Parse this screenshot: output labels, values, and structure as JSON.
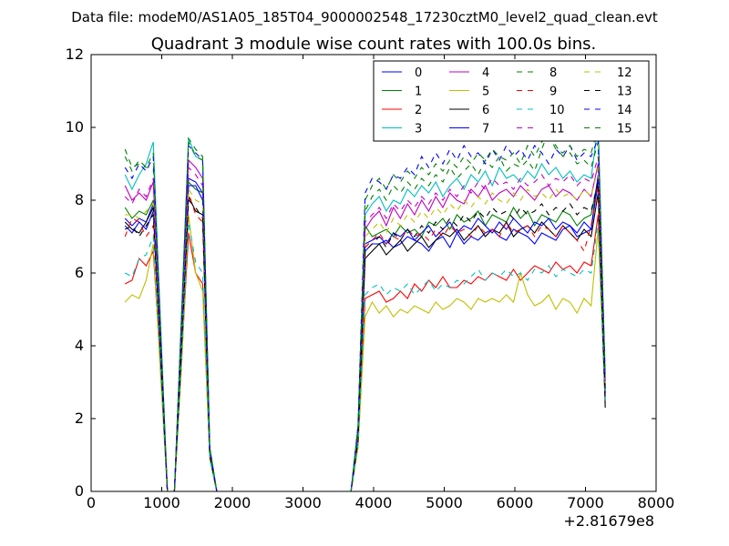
{
  "figure": {
    "suptitle": "Data file: modeM0/AS1A05_185T04_9000002548_17230cztM0_level2_quad_clean.evt",
    "title": "Quadrant 3 module wise count rates with 100.0s bins.",
    "offset_label": "+2.81679e8"
  },
  "chart_data": {
    "type": "line",
    "title": "Quadrant 3 module wise count rates with 100.0s bins.",
    "xlabel": "",
    "ylabel": "",
    "xlim": [
      0,
      8000
    ],
    "ylim": [
      0,
      12
    ],
    "x_offset": 281679000,
    "xticks": [
      0,
      1000,
      2000,
      3000,
      4000,
      5000,
      6000,
      7000,
      8000
    ],
    "yticks": [
      0,
      2,
      4,
      6,
      8,
      10,
      12
    ],
    "grid": false,
    "legend_position": "top-right",
    "legend_columns": 4,
    "x": [
      480,
      580,
      680,
      780,
      880,
      980,
      1080,
      1180,
      1280,
      1380,
      1480,
      1580,
      1680,
      1780,
      1880,
      1980,
      2080,
      2180,
      2280,
      2380,
      2480,
      2580,
      2680,
      2780,
      2880,
      2980,
      3080,
      3180,
      3280,
      3380,
      3480,
      3580,
      3680,
      3780,
      3880,
      3980,
      4080,
      4180,
      4280,
      4380,
      4480,
      4580,
      4680,
      4780,
      4880,
      4980,
      5080,
      5180,
      5280,
      5380,
      5480,
      5580,
      5680,
      5780,
      5880,
      5980,
      6080,
      6180,
      6280,
      6380,
      6480,
      6580,
      6680,
      6780,
      6880,
      6980,
      7080,
      7180,
      7280
    ],
    "series": [
      {
        "name": "0",
        "color": "#0000ff",
        "dash": "solid",
        "values": [
          7.5,
          7.3,
          7.5,
          7.4,
          7.9,
          4.0,
          0.0,
          0.0,
          4.0,
          8.6,
          8.5,
          8.2,
          1.0,
          0.0,
          0,
          0,
          0,
          0,
          0,
          0,
          0,
          0,
          0,
          0,
          0,
          0,
          0,
          0,
          0,
          0,
          0,
          0,
          0.0,
          1.5,
          6.6,
          6.8,
          6.8,
          6.9,
          6.7,
          6.8,
          7.0,
          6.9,
          6.8,
          6.6,
          6.9,
          7.0,
          6.7,
          7.1,
          6.8,
          7.0,
          6.9,
          7.1,
          7.2,
          7.0,
          6.9,
          7.2,
          7.1,
          7.0,
          6.8,
          7.1,
          7.0,
          6.9,
          7.2,
          7.3,
          7.0,
          7.1,
          7.2,
          8.5,
          2.6
        ]
      },
      {
        "name": "1",
        "color": "#008000",
        "dash": "solid",
        "values": [
          7.8,
          7.5,
          7.7,
          7.6,
          8.0,
          4.1,
          0.0,
          0.0,
          4.2,
          8.5,
          8.3,
          8.2,
          1.0,
          0.0,
          0,
          0,
          0,
          0,
          0,
          0,
          0,
          0,
          0,
          0,
          0,
          0,
          0,
          0,
          0,
          0,
          0,
          0,
          0.0,
          1.5,
          7.3,
          7.0,
          7.1,
          7.2,
          7.0,
          7.3,
          7.1,
          7.2,
          7.0,
          7.4,
          7.3,
          7.5,
          7.2,
          7.6,
          7.4,
          7.5,
          7.7,
          7.3,
          7.6,
          7.5,
          7.4,
          7.8,
          7.5,
          7.7,
          7.3,
          7.6,
          7.5,
          7.4,
          7.7,
          7.6,
          7.3,
          7.5,
          7.6,
          8.6,
          2.8
        ]
      },
      {
        "name": "2",
        "color": "#ff0000",
        "dash": "solid",
        "values": [
          5.7,
          5.8,
          6.4,
          6.2,
          6.6,
          3.5,
          0.0,
          0.0,
          3.6,
          7.1,
          6.0,
          5.7,
          0.9,
          0.0,
          0,
          0,
          0,
          0,
          0,
          0,
          0,
          0,
          0,
          0,
          0,
          0,
          0,
          0,
          0,
          0,
          0,
          0,
          0.0,
          1.3,
          5.3,
          5.4,
          5.5,
          5.2,
          5.3,
          5.5,
          5.3,
          5.7,
          5.5,
          5.8,
          5.6,
          5.9,
          5.6,
          5.6,
          5.8,
          5.7,
          5.9,
          5.8,
          6.0,
          5.9,
          5.8,
          6.1,
          5.8,
          6.0,
          6.2,
          6.1,
          6.0,
          6.3,
          6.1,
          6.2,
          6.0,
          6.3,
          6.2,
          7.6,
          2.5
        ]
      },
      {
        "name": "3",
        "color": "#00bfbf",
        "dash": "solid",
        "values": [
          8.7,
          8.3,
          8.7,
          9.0,
          9.6,
          4.8,
          0.0,
          0.0,
          4.9,
          9.7,
          9.2,
          9.1,
          1.2,
          0.0,
          0,
          0,
          0,
          0,
          0,
          0,
          0,
          0,
          0,
          0,
          0,
          0,
          0,
          0,
          0,
          0,
          0,
          0,
          0.0,
          1.8,
          7.6,
          7.9,
          8.1,
          7.7,
          8.0,
          7.9,
          8.3,
          8.1,
          8.4,
          8.2,
          8.5,
          8.1,
          8.4,
          8.6,
          8.3,
          8.7,
          8.5,
          8.8,
          8.4,
          8.9,
          8.6,
          8.7,
          8.5,
          8.8,
          8.6,
          9.0,
          8.7,
          8.9,
          8.6,
          8.8,
          8.5,
          8.7,
          8.6,
          10.1,
          3.0
        ]
      },
      {
        "name": "4",
        "color": "#bf00bf",
        "dash": "solid",
        "values": [
          8.4,
          8.0,
          8.2,
          8.0,
          8.5,
          4.3,
          0.0,
          0.0,
          4.5,
          9.1,
          8.9,
          8.6,
          1.1,
          0.0,
          0,
          0,
          0,
          0,
          0,
          0,
          0,
          0,
          0,
          0,
          0,
          0,
          0,
          0,
          0,
          0,
          0,
          0,
          0.0,
          1.6,
          7.2,
          7.5,
          7.7,
          7.3,
          7.8,
          7.5,
          7.9,
          7.6,
          8.0,
          7.7,
          8.1,
          7.8,
          8.2,
          8.0,
          7.9,
          8.3,
          8.1,
          8.4,
          8.0,
          8.2,
          8.3,
          8.1,
          8.4,
          8.2,
          8.0,
          8.3,
          8.4,
          8.1,
          8.3,
          8.2,
          8.0,
          8.3,
          8.1,
          9.0,
          2.9
        ]
      },
      {
        "name": "5",
        "color": "#bfbf00",
        "dash": "solid",
        "values": [
          5.2,
          5.4,
          5.3,
          5.8,
          6.8,
          3.3,
          0.0,
          0.0,
          3.4,
          7.6,
          6.0,
          5.5,
          0.9,
          0.0,
          0,
          0,
          0,
          0,
          0,
          0,
          0,
          0,
          0,
          0,
          0,
          0,
          0,
          0,
          0,
          0,
          0,
          0,
          0.0,
          1.2,
          4.8,
          5.2,
          4.9,
          5.1,
          4.8,
          5.0,
          4.9,
          5.1,
          5.0,
          4.9,
          5.2,
          5.0,
          5.1,
          5.3,
          5.2,
          5.0,
          5.3,
          5.2,
          5.3,
          5.2,
          5.4,
          5.2,
          6.0,
          5.4,
          5.1,
          5.2,
          5.4,
          5.0,
          5.3,
          5.2,
          4.9,
          5.3,
          5.1,
          7.2,
          2.4
        ]
      },
      {
        "name": "6",
        "color": "#000000",
        "dash": "solid",
        "values": [
          7.4,
          7.2,
          7.1,
          7.4,
          7.8,
          4.0,
          0.0,
          0.0,
          4.0,
          8.1,
          7.7,
          7.6,
          1.0,
          0.0,
          0,
          0,
          0,
          0,
          0,
          0,
          0,
          0,
          0,
          0,
          0,
          0,
          0,
          0,
          0,
          0,
          0,
          0,
          0.0,
          1.4,
          6.4,
          6.6,
          6.8,
          6.5,
          6.7,
          6.9,
          6.6,
          6.8,
          7.0,
          6.7,
          6.9,
          7.1,
          7.0,
          7.2,
          6.9,
          7.1,
          7.3,
          7.0,
          7.2,
          7.1,
          7.4,
          7.0,
          7.2,
          7.3,
          7.1,
          7.4,
          7.2,
          7.0,
          7.3,
          7.1,
          6.9,
          7.2,
          7.0,
          8.2,
          2.3
        ]
      },
      {
        "name": "7",
        "color": "#0000ff",
        "dash": "solid",
        "values": [
          7.3,
          7.1,
          7.4,
          7.2,
          7.7,
          3.9,
          0.0,
          0.0,
          4.0,
          8.4,
          8.4,
          8.0,
          1.0,
          0.0,
          0,
          0,
          0,
          0,
          0,
          0,
          0,
          0,
          0,
          0,
          0,
          0,
          0,
          0,
          0,
          0,
          0,
          0,
          0.0,
          1.5,
          6.8,
          6.9,
          7.0,
          6.8,
          7.1,
          7.0,
          7.2,
          6.9,
          7.1,
          7.3,
          7.0,
          7.2,
          7.4,
          7.1,
          7.3,
          7.2,
          7.5,
          7.3,
          7.1,
          7.4,
          7.2,
          7.5,
          7.3,
          7.1,
          7.4,
          7.3,
          7.5,
          7.2,
          7.4,
          7.3,
          7.1,
          7.4,
          7.2,
          8.7,
          2.7
        ]
      },
      {
        "name": "8",
        "color": "#008000",
        "dash": "dashed",
        "values": [
          9.4,
          8.9,
          9.0,
          8.9,
          8.9,
          4.6,
          0.0,
          0.0,
          4.7,
          9.6,
          9.2,
          9.1,
          1.2,
          0.0,
          0,
          0,
          0,
          0,
          0,
          0,
          0,
          0,
          0,
          0,
          0,
          0,
          0,
          0,
          0,
          0,
          0,
          0,
          0.0,
          1.7,
          7.7,
          8.1,
          8.3,
          8.0,
          8.4,
          8.2,
          8.5,
          8.3,
          8.6,
          8.4,
          8.7,
          8.5,
          8.9,
          8.6,
          8.8,
          9.0,
          8.7,
          9.1,
          8.9,
          9.2,
          8.8,
          9.0,
          8.9,
          9.1,
          8.8,
          9.4,
          9.9,
          9.5,
          9.2,
          9.3,
          9.0,
          9.1,
          8.9,
          9.6,
          3.1
        ]
      },
      {
        "name": "9",
        "color": "#ff0000",
        "dash": "dashed",
        "values": [
          7.0,
          7.5,
          7.4,
          7.0,
          7.3,
          3.8,
          0.0,
          0.0,
          3.9,
          8.2,
          7.6,
          7.4,
          1.0,
          0.0,
          0,
          0,
          0,
          0,
          0,
          0,
          0,
          0,
          0,
          0,
          0,
          0,
          0,
          0,
          0,
          0,
          0,
          0,
          0.0,
          1.4,
          6.7,
          6.9,
          7.1,
          6.8,
          7.0,
          6.9,
          7.2,
          7.0,
          7.1,
          6.9,
          7.2,
          7.0,
          7.3,
          7.1,
          7.2,
          7.0,
          7.3,
          7.1,
          7.2,
          7.0,
          7.4,
          7.1,
          7.2,
          7.3,
          7.0,
          7.3,
          7.2,
          7.0,
          7.3,
          7.1,
          6.9,
          6.6,
          7.3,
          8.4,
          2.6
        ]
      },
      {
        "name": "10",
        "color": "#00bfbf",
        "dash": "dashed",
        "values": [
          6.0,
          5.9,
          6.4,
          6.5,
          7.0,
          3.6,
          0.0,
          0.0,
          3.7,
          7.4,
          6.3,
          6.0,
          0.9,
          0.0,
          0,
          0,
          0,
          0,
          0,
          0,
          0,
          0,
          0,
          0,
          0,
          0,
          0,
          0,
          0,
          0,
          0,
          0,
          0.0,
          1.3,
          5.4,
          5.6,
          5.7,
          5.4,
          5.6,
          5.5,
          5.7,
          5.4,
          5.6,
          5.8,
          5.5,
          5.7,
          5.6,
          5.8,
          5.7,
          5.9,
          6.1,
          5.8,
          6.0,
          5.9,
          6.1,
          5.9,
          6.0,
          5.8,
          6.1,
          6.0,
          6.2,
          5.9,
          6.1,
          6.0,
          5.9,
          6.1,
          6.0,
          7.4,
          2.5
        ]
      },
      {
        "name": "11",
        "color": "#bf00bf",
        "dash": "dashed",
        "values": [
          8.1,
          7.9,
          8.3,
          8.1,
          8.6,
          4.3,
          0.0,
          0.0,
          4.4,
          8.9,
          8.7,
          8.4,
          1.1,
          0.0,
          0,
          0,
          0,
          0,
          0,
          0,
          0,
          0,
          0,
          0,
          0,
          0,
          0,
          0,
          0,
          0,
          0,
          0,
          0.0,
          1.6,
          7.4,
          7.6,
          7.8,
          7.5,
          7.9,
          7.7,
          8.0,
          7.8,
          8.1,
          7.9,
          8.2,
          8.0,
          8.3,
          8.1,
          8.4,
          8.2,
          8.5,
          8.3,
          8.6,
          8.4,
          8.5,
          8.3,
          8.6,
          8.4,
          8.5,
          8.7,
          8.4,
          8.6,
          8.5,
          8.7,
          8.4,
          8.6,
          8.5,
          9.2,
          2.9
        ]
      },
      {
        "name": "12",
        "color": "#bfbf00",
        "dash": "dashed",
        "values": [
          7.6,
          7.6,
          7.5,
          7.7,
          7.9,
          4.0,
          0.0,
          0.0,
          4.1,
          8.3,
          8.0,
          7.9,
          1.0,
          0.0,
          0,
          0,
          0,
          0,
          0,
          0,
          0,
          0,
          0,
          0,
          0,
          0,
          0,
          0,
          0,
          0,
          0,
          0,
          0.0,
          1.5,
          7.0,
          7.2,
          7.4,
          7.1,
          7.5,
          7.3,
          7.6,
          7.4,
          7.7,
          7.5,
          7.8,
          7.6,
          7.9,
          7.7,
          8.0,
          7.8,
          8.1,
          7.9,
          8.2,
          8.0,
          7.9,
          8.2,
          8.0,
          8.3,
          8.1,
          8.2,
          8.0,
          8.3,
          8.1,
          8.2,
          8.0,
          8.3,
          8.1,
          8.9,
          2.8
        ]
      },
      {
        "name": "13",
        "color": "#000000",
        "dash": "dashed",
        "values": [
          7.2,
          7.3,
          7.0,
          7.3,
          7.6,
          3.9,
          0.0,
          0.0,
          3.9,
          8.0,
          7.8,
          7.5,
          1.0,
          0.0,
          0,
          0,
          0,
          0,
          0,
          0,
          0,
          0,
          0,
          0,
          0,
          0,
          0,
          0,
          0,
          0,
          0,
          0,
          0.0,
          1.4,
          6.6,
          6.8,
          7.0,
          6.7,
          7.1,
          6.9,
          7.2,
          7.0,
          7.3,
          7.1,
          7.4,
          7.2,
          7.5,
          7.3,
          7.6,
          7.4,
          7.7,
          7.5,
          7.8,
          7.6,
          7.7,
          7.5,
          7.8,
          7.6,
          7.7,
          7.9,
          7.6,
          7.8,
          7.7,
          7.9,
          7.6,
          7.8,
          7.7,
          8.5,
          2.7
        ]
      },
      {
        "name": "14",
        "color": "#0000ff",
        "dash": "dashed",
        "values": [
          8.9,
          8.6,
          9.0,
          8.8,
          9.2,
          4.6,
          0.0,
          0.0,
          4.7,
          9.5,
          9.3,
          9.1,
          1.2,
          0.0,
          0,
          0,
          0,
          0,
          0,
          0,
          0,
          0,
          0,
          0,
          0,
          0,
          0,
          0,
          0,
          0,
          0,
          0,
          0.0,
          1.8,
          8.2,
          8.6,
          8.5,
          8.3,
          8.7,
          8.6,
          8.9,
          8.7,
          9.2,
          8.9,
          9.3,
          9.0,
          9.4,
          9.1,
          9.5,
          9.2,
          9.3,
          9.0,
          9.4,
          9.1,
          9.5,
          9.2,
          9.4,
          9.1,
          9.5,
          9.3,
          9.0,
          9.4,
          9.2,
          9.5,
          9.1,
          9.3,
          9.2,
          9.7,
          3.1
        ]
      },
      {
        "name": "15",
        "color": "#008000",
        "dash": "dashed",
        "values": [
          9.2,
          8.8,
          9.1,
          8.9,
          9.3,
          4.7,
          0.0,
          0.0,
          4.8,
          9.7,
          9.4,
          9.2,
          1.2,
          0.0,
          0,
          0,
          0,
          0,
          0,
          0,
          0,
          0,
          0,
          0,
          0,
          0,
          0,
          0,
          0,
          0,
          0,
          0,
          0.0,
          1.8,
          8.0,
          8.4,
          8.6,
          8.3,
          8.7,
          8.5,
          8.8,
          8.6,
          8.9,
          8.7,
          9.0,
          8.8,
          9.1,
          8.9,
          9.2,
          9.0,
          9.3,
          9.1,
          9.4,
          9.2,
          9.1,
          9.3,
          9.0,
          9.5,
          9.2,
          9.6,
          9.8,
          9.4,
          9.3,
          9.5,
          9.2,
          9.4,
          9.3,
          10.0,
          3.2
        ]
      }
    ]
  }
}
